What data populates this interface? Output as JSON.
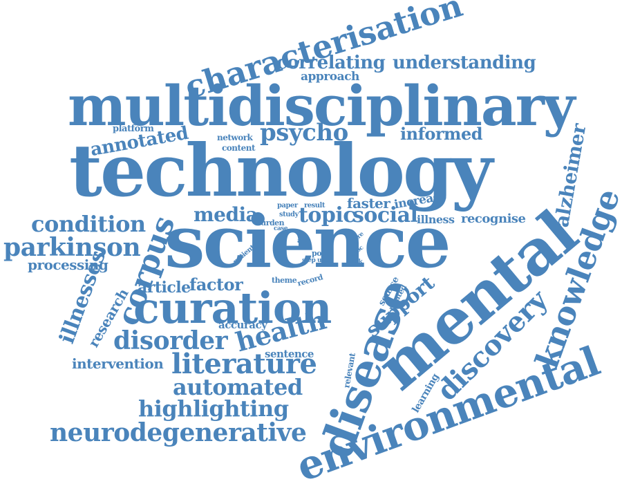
{
  "color": "#4a84bb",
  "words": [
    "characterisation",
    "correlating",
    "understanding",
    "approach",
    "multidisciplinary",
    "platform",
    "network",
    "content",
    "psycho",
    "informed",
    "annotated",
    "technology",
    "alzheimer",
    "paper",
    "result",
    "increase",
    "faster",
    "media",
    "topic",
    "social",
    "condition",
    "corpus",
    "burden",
    "study",
    "case",
    "illness",
    "recognise",
    "knowledge",
    "parkinson",
    "science",
    "aim",
    "care",
    "patient",
    "post",
    "step",
    "user",
    "proc",
    "task",
    "processing",
    "mental",
    "illnesses",
    "article",
    "factor",
    "theme",
    "record",
    "source",
    "related",
    "support",
    "curation",
    "research",
    "accuracy",
    "health",
    "disease",
    "discovery",
    "disorder",
    "sentence",
    "intervention",
    "literature",
    "relevant",
    "learning",
    "automated",
    "environmental",
    "highlighting",
    "neurodegenerative"
  ]
}
